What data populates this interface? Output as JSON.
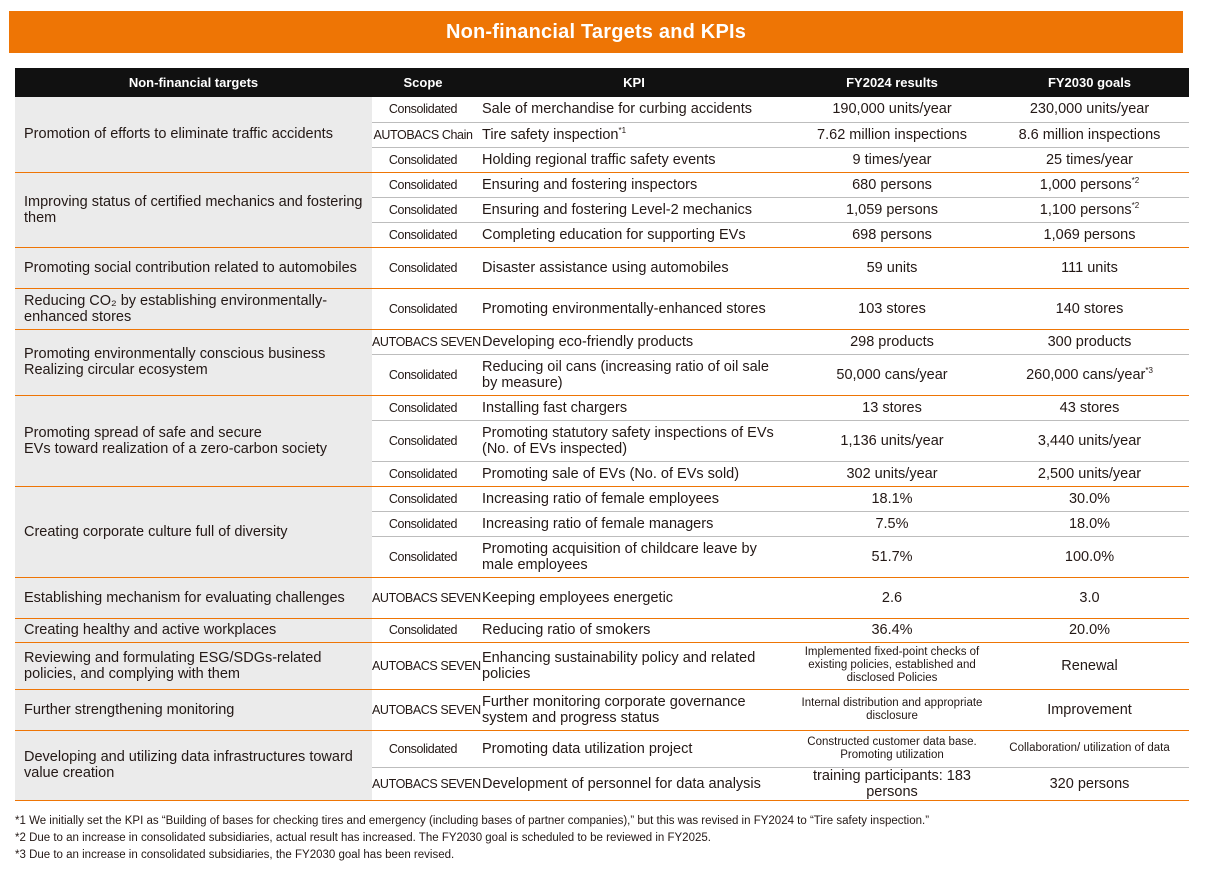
{
  "title": "Non-financial Targets and KPIs",
  "headers": {
    "target": "Non-financial targets",
    "scope": "Scope",
    "kpi": "KPI",
    "results": "FY2024 results",
    "goals": "FY2030 goals"
  },
  "groups": [
    {
      "target": [
        "Promotion of efforts to eliminate traffic accidents"
      ],
      "rows": [
        {
          "scope": "Consolidated",
          "kpi": "Sale of merchandise for curbing accidents",
          "result": "190,000 units/year",
          "goal": "230,000 units/year"
        },
        {
          "scope": "AUTOBACS Chain",
          "kpi": "Tire safety inspection",
          "kpi_sup": "*1",
          "result": "7.62 million inspections",
          "goal": "8.6 million inspections"
        },
        {
          "scope": "Consolidated",
          "kpi": "Holding regional traffic safety events",
          "result": "9 times/year",
          "goal": "25 times/year"
        }
      ]
    },
    {
      "target": [
        "Improving status of certified mechanics and fostering them"
      ],
      "rows": [
        {
          "scope": "Consolidated",
          "kpi": "Ensuring and fostering inspectors",
          "result": "680 persons",
          "goal": "1,000 persons",
          "goal_sup": "*2"
        },
        {
          "scope": "Consolidated",
          "kpi": "Ensuring and fostering Level-2 mechanics",
          "result": "1,059 persons",
          "goal": "1,100 persons",
          "goal_sup": "*2"
        },
        {
          "scope": "Consolidated",
          "kpi": "Completing education for supporting EVs",
          "result": "698 persons",
          "goal": "1,069 persons"
        }
      ]
    },
    {
      "target": [
        "Promoting social contribution related to automobiles"
      ],
      "rows": [
        {
          "scope": "Consolidated",
          "kpi": "Disaster assistance using automobiles",
          "result": "59 units",
          "goal": "111 units"
        }
      ]
    },
    {
      "target": [
        "Reducing CO₂ by establishing environmentally-enhanced stores"
      ],
      "rows": [
        {
          "scope": "Consolidated",
          "kpi": "Promoting environmentally-enhanced stores",
          "result": "103 stores",
          "goal": "140 stores"
        }
      ]
    },
    {
      "target": [
        "Promoting environmentally conscious business",
        "Realizing circular ecosystem"
      ],
      "rows": [
        {
          "scope": "AUTOBACS SEVEN",
          "kpi": "Developing eco-friendly products",
          "result": "298 products",
          "goal": "300 products"
        },
        {
          "scope": "Consolidated",
          "kpi": "Reducing oil cans (increasing ratio of oil sale by measure)",
          "result": "50,000 cans/year",
          "goal": "260,000 cans/year",
          "goal_sup": "*3"
        }
      ]
    },
    {
      "target": [
        "Promoting spread of safe and secure",
        "EVs toward realization of a zero-carbon society"
      ],
      "rows": [
        {
          "scope": "Consolidated",
          "kpi": "Installing fast chargers",
          "result": "13 stores",
          "goal": "43 stores"
        },
        {
          "scope": "Consolidated",
          "kpi": "Promoting statutory safety inspections of EVs (No. of EVs inspected)",
          "result": "1,136 units/year",
          "goal": "3,440 units/year"
        },
        {
          "scope": "Consolidated",
          "kpi": "Promoting sale of EVs (No. of EVs sold)",
          "result": "302 units/year",
          "goal": "2,500 units/year"
        }
      ]
    },
    {
      "target": [
        "Creating corporate culture full of diversity"
      ],
      "rows": [
        {
          "scope": "Consolidated",
          "kpi": "Increasing ratio of female employees",
          "result": "18.1%",
          "goal": "30.0%"
        },
        {
          "scope": "Consolidated",
          "kpi": "Increasing ratio of female managers",
          "result": "7.5%",
          "goal": "18.0%"
        },
        {
          "scope": "Consolidated",
          "kpi": "Promoting acquisition of childcare leave by male employees",
          "result": "51.7%",
          "goal": "100.0%"
        }
      ]
    },
    {
      "target": [
        "Establishing mechanism for evaluating challenges"
      ],
      "rows": [
        {
          "scope": "AUTOBACS SEVEN",
          "kpi": "Keeping employees energetic",
          "result": "2.6",
          "goal": "3.0"
        }
      ]
    },
    {
      "target": [
        "Creating healthy and active workplaces"
      ],
      "rows": [
        {
          "scope": "Consolidated",
          "kpi": "Reducing ratio of smokers",
          "result": "36.4%",
          "goal": "20.0%"
        }
      ]
    },
    {
      "target": [
        "Reviewing and formulating ESG/SDGs-related",
        "policies, and complying with them"
      ],
      "rows": [
        {
          "scope": "AUTOBACS SEVEN",
          "kpi": "Enhancing sustainability policy and related policies",
          "result": "Implemented fixed-point checks of existing policies, established and disclosed Policies",
          "result_small": true,
          "goal": "Renewal"
        }
      ]
    },
    {
      "target": [
        "Further strengthening monitoring"
      ],
      "rows": [
        {
          "scope": "AUTOBACS SEVEN",
          "kpi": "Further monitoring corporate governance system and progress status",
          "result": "Internal distribution and appropriate disclosure",
          "result_small": true,
          "goal": "Improvement"
        }
      ]
    },
    {
      "target": [
        "Developing and utilizing data infrastructures toward value creation"
      ],
      "rows": [
        {
          "scope": "Consolidated",
          "kpi": "Promoting data utilization project",
          "result": "Constructed customer data base. Promoting utilization",
          "result_small": true,
          "goal": "Collaboration/ utilization of data",
          "goal_small": true
        },
        {
          "scope": "AUTOBACS SEVEN",
          "kpi": "Development of personnel for data analysis",
          "result": "training participants: 183 persons",
          "goal": "320 persons"
        }
      ]
    }
  ],
  "notes": [
    "*1  We initially set the KPI as “Building of bases for checking tires and emergency (including bases of partner companies),” but this was revised in FY2024 to “Tire safety inspection.”",
    "*2  Due to an increase in consolidated subsidiaries, actual result has increased. The FY2030 goal is scheduled to be reviewed in FY2025.",
    "*3  Due to an increase in consolidated subsidiaries, the FY2030 goal has been revised."
  ]
}
